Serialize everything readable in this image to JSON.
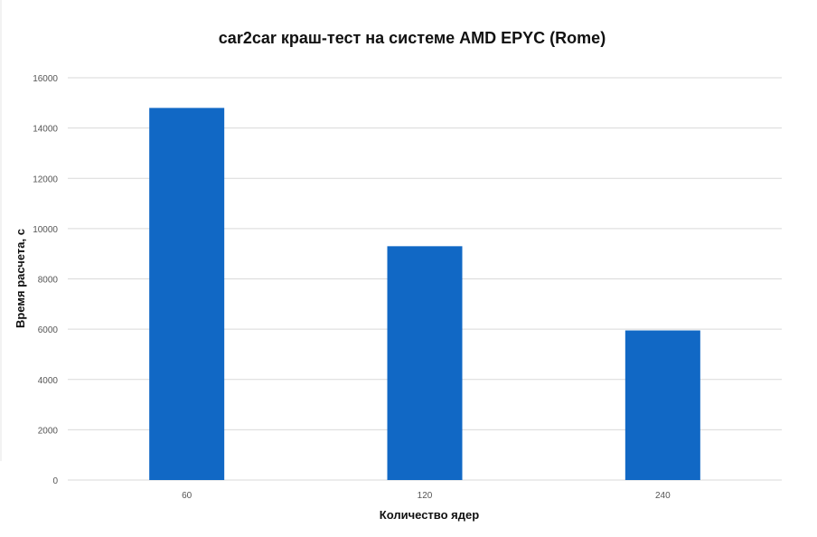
{
  "chart_data": {
    "type": "bar",
    "title": "car2car краш-тест на системе AMD EPYC (Rome)",
    "xlabel": "Количество ядер",
    "ylabel": "Время расчета, с",
    "categories": [
      "60",
      "120",
      "240"
    ],
    "values": [
      14800,
      9300,
      5950
    ],
    "ylim": [
      0,
      16000
    ],
    "yticks": [
      0,
      2000,
      4000,
      6000,
      8000,
      10000,
      12000,
      14000,
      16000
    ],
    "grid": true,
    "legend": "none",
    "bar_color": "#1168c5"
  }
}
